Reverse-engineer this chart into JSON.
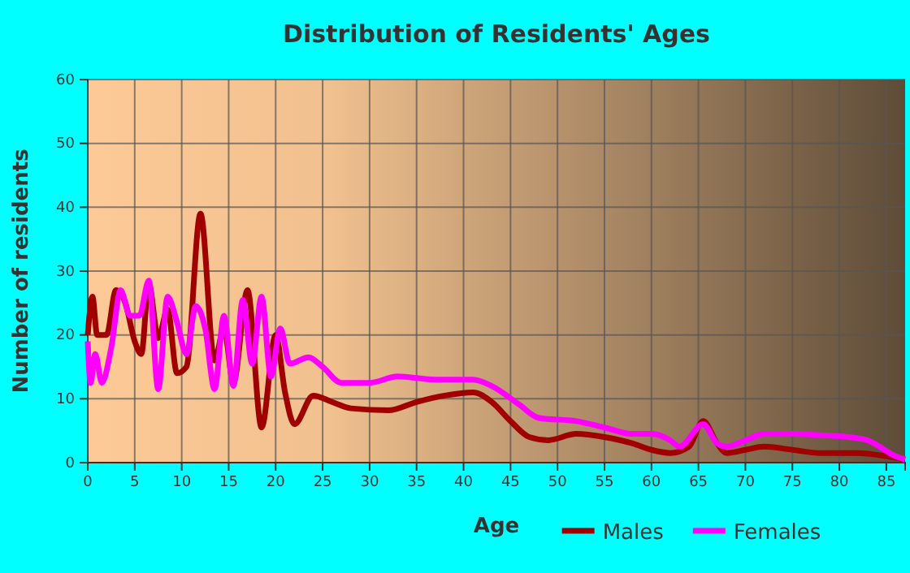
{
  "chart_data": {
    "type": "line",
    "title": "Distribution of Residents' Ages",
    "xlabel": "Age",
    "ylabel": "Number of residents",
    "xlim": [
      0,
      87
    ],
    "xticks": [
      0,
      5,
      10,
      15,
      20,
      25,
      30,
      35,
      40,
      45,
      50,
      55,
      60,
      65,
      70,
      75,
      80,
      85
    ],
    "ylim": [
      0,
      60
    ],
    "yticks": [
      0,
      10,
      20,
      30,
      40,
      50,
      60
    ],
    "grid": true,
    "legend": "bottom",
    "marker": "none",
    "series": [
      {
        "name": "Males",
        "color": "#a00000",
        "x": [
          0,
          0.5,
          1,
          2,
          3,
          4,
          5,
          5.7,
          6.5,
          7.5,
          8.5,
          9.5,
          10.5,
          12,
          13.5,
          14.5,
          15.5,
          17,
          18.5,
          20,
          21,
          22,
          24,
          26,
          28,
          32,
          35,
          38,
          41,
          43,
          45,
          47,
          49,
          52,
          55,
          58,
          60,
          62,
          64,
          65.5,
          67,
          68,
          70,
          72,
          75,
          78,
          82,
          85,
          87
        ],
        "values": [
          20,
          26,
          20,
          20,
          27,
          25,
          19,
          17,
          28,
          19.5,
          24,
          14,
          15,
          39,
          16,
          21,
          12.5,
          27,
          5.5,
          20,
          11,
          6,
          10.5,
          9.5,
          8.5,
          8.2,
          9.5,
          10.5,
          11,
          9.5,
          6.5,
          4,
          3.5,
          4.5,
          4,
          3,
          2,
          1.5,
          2.5,
          6.5,
          3,
          1.5,
          2,
          2.5,
          2,
          1.5,
          1.5,
          1,
          0.5
        ]
      },
      {
        "name": "Females",
        "color": "#ff00ff",
        "x": [
          0,
          0.3,
          0.8,
          1.5,
          2.5,
          3.5,
          4.5,
          5.5,
          6.5,
          7.5,
          8.5,
          9.5,
          10.5,
          11.5,
          12.5,
          13.5,
          14.5,
          15.5,
          16.5,
          17.5,
          18.5,
          19.5,
          20.5,
          21.5,
          23.5,
          25,
          27,
          30,
          33,
          37,
          41,
          43,
          46,
          48,
          52,
          55,
          58,
          60,
          62,
          63,
          65.5,
          67,
          68,
          70,
          72,
          75,
          78,
          81,
          83,
          86,
          87
        ],
        "values": [
          19,
          12.5,
          17,
          12.5,
          18,
          27,
          23,
          23,
          28.5,
          11.5,
          26,
          22,
          17,
          24.5,
          21,
          11.5,
          23,
          12,
          25.5,
          15.5,
          26,
          13.5,
          21,
          15.5,
          16.5,
          15,
          12.5,
          12.5,
          13.5,
          13,
          13,
          12,
          9,
          7,
          6.5,
          5.5,
          4.5,
          4.5,
          3.5,
          2.5,
          6,
          3,
          2.5,
          3.5,
          4.5,
          4.5,
          4.3,
          4,
          3.5,
          1,
          0.5
        ]
      }
    ]
  }
}
